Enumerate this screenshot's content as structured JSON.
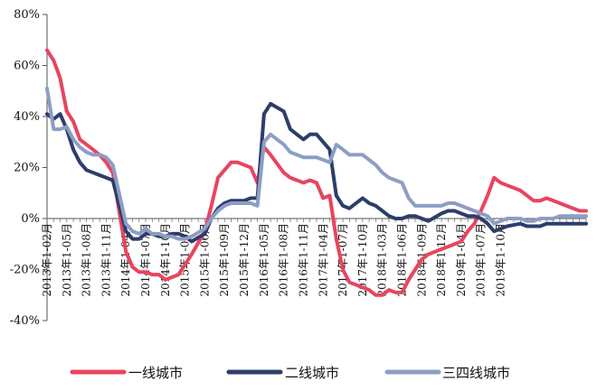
{
  "chart_data": {
    "type": "line",
    "title": "",
    "xlabel": "",
    "ylabel": "",
    "ylim": [
      -40,
      80
    ],
    "y_unit": "%",
    "y_ticks": [
      "-40%",
      "-20%",
      "0%",
      "20%",
      "40%",
      "60%",
      "80%"
    ],
    "x_start": "2013-02",
    "x_end": "2019-12",
    "x_tick_labels": [
      "2013年1-02月",
      "2013年1-05月",
      "2013年1-08月",
      "2013年1-11月",
      "2014年1-04月",
      "2014年1-07月",
      "2014年1-10月",
      "2015年1-03月",
      "2015年1-06月",
      "2015年1-09月",
      "2015年1-12月",
      "2016年1-05月",
      "2016年1-08月",
      "2016年1-11月",
      "2017年1-04月",
      "2017年1-07月",
      "2017年1-10月",
      "2018年1-03月",
      "2018年1-06月",
      "2018年1-09月",
      "2018年1-12月",
      "2019年1-04月",
      "2019年1-07月",
      "2019年1-10月"
    ],
    "grid": false,
    "legend_position": "bottom",
    "series": [
      {
        "name": "一线城市",
        "color": "#e8445f",
        "points": [
          [
            "2013-02",
            66
          ],
          [
            "2013-03",
            62
          ],
          [
            "2013-04",
            55
          ],
          [
            "2013-05",
            42
          ],
          [
            "2013-06",
            38
          ],
          [
            "2013-07",
            31
          ],
          [
            "2013-08",
            29
          ],
          [
            "2013-09",
            27
          ],
          [
            "2013-10",
            25
          ],
          [
            "2013-11",
            22
          ],
          [
            "2013-12",
            18
          ],
          [
            "2014-02",
            -13
          ],
          [
            "2014-03",
            -19
          ],
          [
            "2014-04",
            -21
          ],
          [
            "2014-05",
            -21
          ],
          [
            "2014-06",
            -22
          ],
          [
            "2014-07",
            -22
          ],
          [
            "2014-08",
            -24
          ],
          [
            "2014-09",
            -23
          ],
          [
            "2014-10",
            -22
          ],
          [
            "2014-11",
            -18
          ],
          [
            "2014-12",
            -14
          ],
          [
            "2015-02",
            -5
          ],
          [
            "2015-03",
            5
          ],
          [
            "2015-04",
            16
          ],
          [
            "2015-05",
            19
          ],
          [
            "2015-06",
            22
          ],
          [
            "2015-07",
            22
          ],
          [
            "2015-08",
            21
          ],
          [
            "2015-09",
            20
          ],
          [
            "2015-10",
            14
          ],
          [
            "2015-11",
            28
          ],
          [
            "2015-12",
            25
          ],
          [
            "2016-02",
            18
          ],
          [
            "2016-03",
            16
          ],
          [
            "2016-04",
            15
          ],
          [
            "2016-05",
            14
          ],
          [
            "2016-06",
            15
          ],
          [
            "2016-07",
            14
          ],
          [
            "2016-08",
            8
          ],
          [
            "2016-09",
            9
          ],
          [
            "2016-10",
            -8
          ],
          [
            "2016-11",
            -20
          ],
          [
            "2016-12",
            -25
          ],
          [
            "2017-02",
            -27
          ],
          [
            "2017-03",
            -28
          ],
          [
            "2017-04",
            -30
          ],
          [
            "2017-05",
            -30
          ],
          [
            "2017-06",
            -28
          ],
          [
            "2017-07",
            -29
          ],
          [
            "2017-08",
            -29
          ],
          [
            "2017-09",
            -24
          ],
          [
            "2017-10",
            -20
          ],
          [
            "2017-11",
            -16
          ],
          [
            "2017-12",
            -14
          ],
          [
            "2018-02",
            -12
          ],
          [
            "2018-03",
            -11
          ],
          [
            "2018-04",
            -10
          ],
          [
            "2018-05",
            -9
          ],
          [
            "2018-06",
            -5
          ],
          [
            "2018-07",
            -2
          ],
          [
            "2018-08",
            3
          ],
          [
            "2018-09",
            9
          ],
          [
            "2018-10",
            16
          ],
          [
            "2018-11",
            14
          ],
          [
            "2018-12",
            13
          ],
          [
            "2019-02",
            11
          ],
          [
            "2019-03",
            9
          ],
          [
            "2019-04",
            7
          ],
          [
            "2019-05",
            7
          ],
          [
            "2019-06",
            8
          ],
          [
            "2019-07",
            7
          ],
          [
            "2019-08",
            6
          ],
          [
            "2019-09",
            5
          ],
          [
            "2019-10",
            4
          ],
          [
            "2019-11",
            3
          ],
          [
            "2019-12",
            3
          ]
        ]
      },
      {
        "name": "二线城市",
        "color": "#2d3d6b",
        "points": [
          [
            "2013-02",
            41
          ],
          [
            "2013-03",
            39
          ],
          [
            "2013-04",
            41
          ],
          [
            "2013-05",
            35
          ],
          [
            "2013-06",
            27
          ],
          [
            "2013-07",
            22
          ],
          [
            "2013-08",
            19
          ],
          [
            "2013-09",
            18
          ],
          [
            "2013-10",
            17
          ],
          [
            "2013-11",
            16
          ],
          [
            "2013-12",
            15
          ],
          [
            "2014-02",
            -5
          ],
          [
            "2014-03",
            -8
          ],
          [
            "2014-04",
            -8
          ],
          [
            "2014-05",
            -6
          ],
          [
            "2014-06",
            -6
          ],
          [
            "2014-07",
            -7
          ],
          [
            "2014-08",
            -7
          ],
          [
            "2014-09",
            -6
          ],
          [
            "2014-10",
            -6
          ],
          [
            "2014-11",
            -7
          ],
          [
            "2014-12",
            -9
          ],
          [
            "2015-02",
            -6
          ],
          [
            "2015-03",
            0
          ],
          [
            "2015-04",
            4
          ],
          [
            "2015-05",
            6
          ],
          [
            "2015-06",
            7
          ],
          [
            "2015-07",
            7
          ],
          [
            "2015-08",
            7
          ],
          [
            "2015-09",
            8
          ],
          [
            "2015-10",
            8
          ],
          [
            "2015-11",
            41
          ],
          [
            "2015-12",
            45
          ],
          [
            "2016-02",
            42
          ],
          [
            "2016-03",
            35
          ],
          [
            "2016-04",
            33
          ],
          [
            "2016-05",
            31
          ],
          [
            "2016-06",
            33
          ],
          [
            "2016-07",
            33
          ],
          [
            "2016-08",
            30
          ],
          [
            "2016-09",
            27
          ],
          [
            "2016-10",
            9
          ],
          [
            "2016-11",
            5
          ],
          [
            "2016-12",
            4
          ],
          [
            "2017-02",
            8
          ],
          [
            "2017-03",
            6
          ],
          [
            "2017-04",
            5
          ],
          [
            "2017-05",
            3
          ],
          [
            "2017-06",
            1
          ],
          [
            "2017-07",
            0
          ],
          [
            "2017-08",
            0
          ],
          [
            "2017-09",
            1
          ],
          [
            "2017-10",
            1
          ],
          [
            "2017-11",
            0
          ],
          [
            "2017-12",
            -1
          ],
          [
            "2018-02",
            2
          ],
          [
            "2018-03",
            3
          ],
          [
            "2018-04",
            3
          ],
          [
            "2018-05",
            2
          ],
          [
            "2018-06",
            1
          ],
          [
            "2018-07",
            1
          ],
          [
            "2018-08",
            0
          ],
          [
            "2018-09",
            -2
          ],
          [
            "2018-10",
            -5
          ],
          [
            "2018-11",
            -4
          ],
          [
            "2018-12",
            -3
          ],
          [
            "2019-02",
            -2
          ],
          [
            "2019-03",
            -3
          ],
          [
            "2019-04",
            -3
          ],
          [
            "2019-05",
            -3
          ],
          [
            "2019-06",
            -2
          ],
          [
            "2019-07",
            -2
          ],
          [
            "2019-08",
            -2
          ],
          [
            "2019-09",
            -2
          ],
          [
            "2019-10",
            -2
          ],
          [
            "2019-11",
            -2
          ],
          [
            "2019-12",
            -2
          ]
        ]
      },
      {
        "name": "三四线城市",
        "color": "#8d9ec4",
        "points": [
          [
            "2013-02",
            51
          ],
          [
            "2013-03",
            35
          ],
          [
            "2013-04",
            35
          ],
          [
            "2013-05",
            36
          ],
          [
            "2013-06",
            31
          ],
          [
            "2013-07",
            28
          ],
          [
            "2013-08",
            26
          ],
          [
            "2013-09",
            25
          ],
          [
            "2013-10",
            25
          ],
          [
            "2013-11",
            24
          ],
          [
            "2013-12",
            21
          ],
          [
            "2014-02",
            -2
          ],
          [
            "2014-03",
            -5
          ],
          [
            "2014-04",
            -6
          ],
          [
            "2014-05",
            -4
          ],
          [
            "2014-06",
            -6
          ],
          [
            "2014-07",
            -6
          ],
          [
            "2014-08",
            -7
          ],
          [
            "2014-09",
            -7
          ],
          [
            "2014-10",
            -8
          ],
          [
            "2014-11",
            -8
          ],
          [
            "2014-12",
            -7
          ],
          [
            "2015-02",
            -4
          ],
          [
            "2015-03",
            0
          ],
          [
            "2015-04",
            3
          ],
          [
            "2015-05",
            5
          ],
          [
            "2015-06",
            6
          ],
          [
            "2015-07",
            6
          ],
          [
            "2015-08",
            6
          ],
          [
            "2015-09",
            6
          ],
          [
            "2015-10",
            5
          ],
          [
            "2015-11",
            30
          ],
          [
            "2015-12",
            33
          ],
          [
            "2016-02",
            29
          ],
          [
            "2016-03",
            26
          ],
          [
            "2016-04",
            25
          ],
          [
            "2016-05",
            24
          ],
          [
            "2016-06",
            24
          ],
          [
            "2016-07",
            24
          ],
          [
            "2016-08",
            23
          ],
          [
            "2016-09",
            22
          ],
          [
            "2016-10",
            29
          ],
          [
            "2016-11",
            27
          ],
          [
            "2016-12",
            25
          ],
          [
            "2017-02",
            25
          ],
          [
            "2017-03",
            23
          ],
          [
            "2017-04",
            21
          ],
          [
            "2017-05",
            18
          ],
          [
            "2017-06",
            16
          ],
          [
            "2017-07",
            15
          ],
          [
            "2017-08",
            14
          ],
          [
            "2017-09",
            8
          ],
          [
            "2017-10",
            5
          ],
          [
            "2017-11",
            5
          ],
          [
            "2017-12",
            5
          ],
          [
            "2018-02",
            5
          ],
          [
            "2018-03",
            6
          ],
          [
            "2018-04",
            6
          ],
          [
            "2018-05",
            5
          ],
          [
            "2018-06",
            4
          ],
          [
            "2018-07",
            3
          ],
          [
            "2018-08",
            2
          ],
          [
            "2018-09",
            1
          ],
          [
            "2018-10",
            -2
          ],
          [
            "2018-11",
            -1
          ],
          [
            "2018-12",
            0
          ],
          [
            "2019-02",
            0
          ],
          [
            "2019-03",
            -1
          ],
          [
            "2019-04",
            -1
          ],
          [
            "2019-05",
            0
          ],
          [
            "2019-06",
            0
          ],
          [
            "2019-07",
            0
          ],
          [
            "2019-08",
            1
          ],
          [
            "2019-09",
            1
          ],
          [
            "2019-10",
            1
          ],
          [
            "2019-11",
            1
          ],
          [
            "2019-12",
            1
          ]
        ]
      }
    ]
  }
}
